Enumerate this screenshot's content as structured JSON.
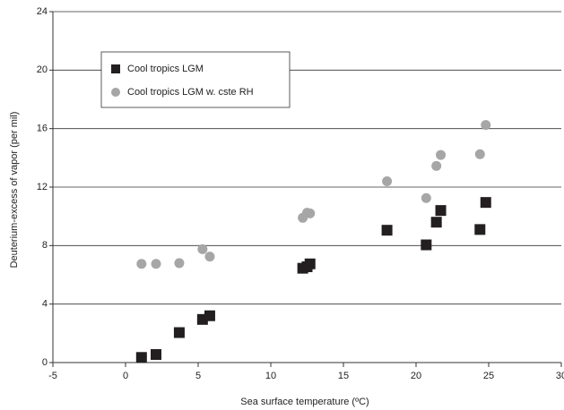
{
  "chart_data": {
    "type": "scatter",
    "x_label": "Sea surface temperature (ºC)",
    "y_label": "Deuterium-excess of vapor (per mil)",
    "xlim": [
      -5,
      30
    ],
    "xticks": [
      -5,
      0,
      5,
      10,
      15,
      20,
      25,
      30
    ],
    "ylim": [
      0,
      24
    ],
    "yticks": [
      0,
      4,
      8,
      12,
      16,
      20,
      24
    ],
    "grid": true,
    "legend": "upper left",
    "series": [
      {
        "name": "Cool tropics LGM",
        "color": "#231f20",
        "marker": "square",
        "x": [
          1.1,
          2.1,
          3.7,
          5.3,
          5.8,
          12.2,
          12.5,
          12.7,
          18.0,
          20.7,
          21.4,
          21.7,
          24.4,
          24.8
        ],
        "values": [
          0.35,
          0.55,
          2.05,
          2.95,
          3.2,
          6.45,
          6.55,
          6.75,
          9.05,
          8.05,
          9.6,
          10.4,
          9.1,
          10.95
        ]
      },
      {
        "name": "Cool tropics LGM w. cste RH",
        "color": "#a6a6a6",
        "marker": "circle",
        "x": [
          1.1,
          2.1,
          3.7,
          5.3,
          5.8,
          12.2,
          12.5,
          12.7,
          18.0,
          20.7,
          21.4,
          21.7,
          24.4,
          24.8
        ],
        "values": [
          6.75,
          6.75,
          6.8,
          7.75,
          7.25,
          9.9,
          10.25,
          10.2,
          12.4,
          11.25,
          13.45,
          14.2,
          14.25,
          16.25
        ]
      }
    ]
  }
}
